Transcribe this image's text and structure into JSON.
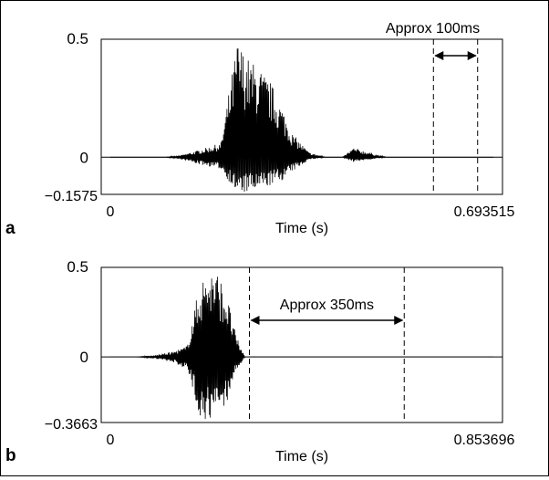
{
  "chart_data": [
    {
      "panel_label": "a",
      "type": "line",
      "xlabel": "Time (s)",
      "ylabel": "",
      "xlim": [
        0,
        0.693515
      ],
      "ylim": [
        -0.1575,
        0.5
      ],
      "x_tick_labels": [
        "0",
        "0.693515"
      ],
      "y_tick_labels": [
        "0.5",
        "0",
        "−0.1575"
      ],
      "series": [
        {
          "description_points": {
            "x": [
              0.0,
              0.05,
              0.1,
              0.13,
              0.16,
              0.2,
              0.23,
              0.25,
              0.27,
              0.29,
              0.31,
              0.33,
              0.36,
              0.39,
              0.42,
              0.44,
              0.47,
              0.5,
              0.55,
              0.6,
              0.693515
            ],
            "envelope_pos": [
              0.0,
              0.0,
              0.0,
              0.01,
              0.03,
              0.06,
              0.5,
              0.42,
              0.38,
              0.32,
              0.22,
              0.1,
              0.02,
              0.0,
              0.0,
              0.04,
              0.02,
              0.0,
              0.0,
              0.0,
              0.0
            ],
            "envelope_neg": [
              0.0,
              0.0,
              0.0,
              -0.01,
              -0.03,
              -0.05,
              -0.1575,
              -0.15,
              -0.14,
              -0.12,
              -0.1,
              -0.06,
              -0.01,
              0.0,
              0.0,
              -0.02,
              -0.01,
              0.0,
              0.0,
              0.0,
              0.0
            ]
          }
        }
      ],
      "annotation": {
        "text": "Approx 100ms",
        "x_start": 0.585,
        "x_end": 0.665
      }
    },
    {
      "panel_label": "b",
      "type": "line",
      "xlabel": "Time (s)",
      "ylabel": "",
      "xlim": [
        0,
        0.853696
      ],
      "ylim": [
        -0.3663,
        0.5
      ],
      "x_tick_labels": [
        "0",
        "0.853696"
      ],
      "y_tick_labels": [
        "0.5",
        "0",
        "−0.3663"
      ],
      "series": [
        {
          "description_points": {
            "x": [
              0.0,
              0.06,
              0.1,
              0.14,
              0.17,
              0.2,
              0.22,
              0.24,
              0.26,
              0.28,
              0.3,
              0.35,
              0.5,
              0.7,
              0.853696
            ],
            "envelope_pos": [
              0.0,
              0.0,
              0.01,
              0.03,
              0.06,
              0.42,
              0.5,
              0.47,
              0.35,
              0.12,
              0.0,
              0.0,
              0.0,
              0.0,
              0.0
            ],
            "envelope_neg": [
              0.0,
              0.0,
              -0.01,
              -0.03,
              -0.07,
              -0.33,
              -0.3663,
              -0.33,
              -0.25,
              -0.08,
              0.0,
              0.0,
              0.0,
              0.0,
              0.0
            ]
          }
        }
      ],
      "annotation": {
        "text": "Approx 350ms",
        "x_start": 0.31,
        "x_end": 0.655
      }
    }
  ]
}
